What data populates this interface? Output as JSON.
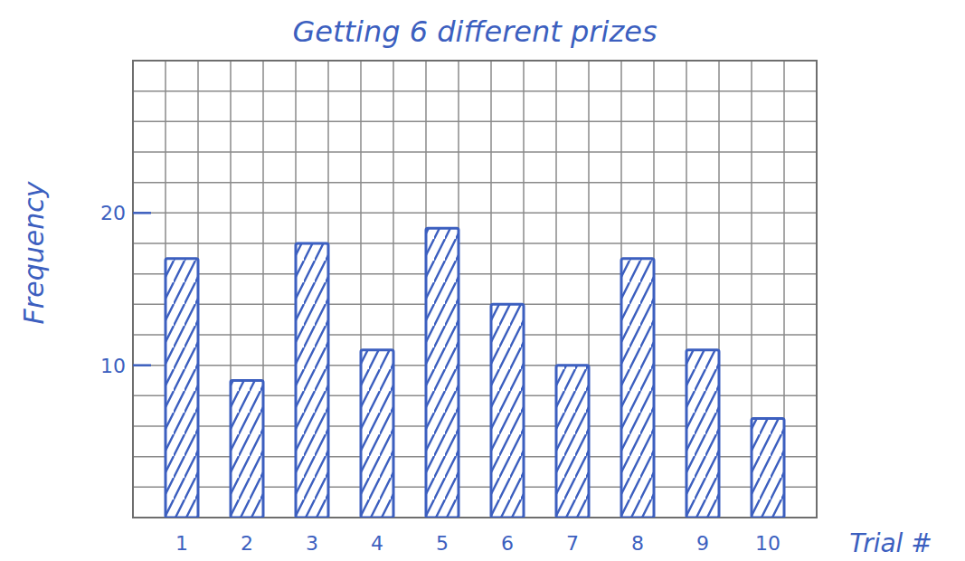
{
  "chart_data": {
    "type": "bar",
    "title": "Getting 6 different prizes",
    "x_label": "Trial #",
    "y_label": "Frequency",
    "categories": [
      "1",
      "2",
      "3",
      "4",
      "5",
      "6",
      "7",
      "8",
      "9",
      "10"
    ],
    "values": [
      17,
      9,
      18,
      11,
      19,
      14,
      10,
      17,
      11,
      6.5
    ],
    "color": "#3c5fbf",
    "ylim": [
      0,
      30
    ],
    "yticks": [
      10,
      20
    ],
    "grid": true
  }
}
